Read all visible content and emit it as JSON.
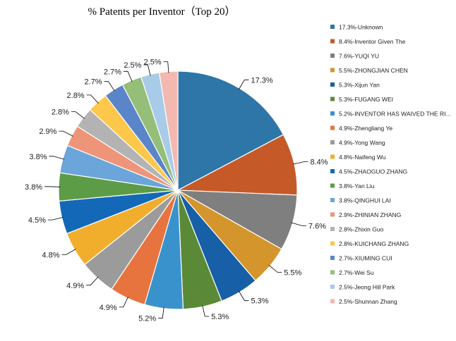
{
  "chart_data": {
    "type": "pie",
    "title": "% Patents per Inventor（Top 20）",
    "legend_position": "right",
    "slices": [
      {
        "name": "Unknown",
        "value": 17.3,
        "label": "17.3%",
        "legend": "17.3%-Unknown",
        "color": "#2E75A8"
      },
      {
        "name": "Inventor Given The",
        "value": 8.4,
        "label": "8.4%",
        "legend": "8.4%-Inventor Given The",
        "color": "#C55A28"
      },
      {
        "name": "YUQI YU",
        "value": 7.6,
        "label": "7.6%",
        "legend": "7.6%-YUQI YU",
        "color": "#7F7F7F"
      },
      {
        "name": "ZHONGJIAN CHEN",
        "value": 5.5,
        "label": "5.5%",
        "legend": "5.5%-ZHONGJIAN CHEN",
        "color": "#D4952C"
      },
      {
        "name": "Xijun Yan",
        "value": 5.3,
        "label": "5.3%",
        "legend": "5.3%-Xijun Yan",
        "color": "#175FA6"
      },
      {
        "name": "FUGANG WEI",
        "value": 5.3,
        "label": "5.3%",
        "legend": "5.3%-FUGANG WEI",
        "color": "#5A8A38"
      },
      {
        "name": "INVENTOR HAS WAIVED THE RI...",
        "value": 5.2,
        "label": "5.2%",
        "legend": "5.2%-INVENTOR HAS WAIVED THE RI...",
        "color": "#3A92CC"
      },
      {
        "name": "Zhengliang Ye",
        "value": 4.9,
        "label": "4.9%",
        "legend": "4.9%-Zhengliang Ye",
        "color": "#E7743E"
      },
      {
        "name": "Yong Wang",
        "value": 4.9,
        "label": "4.9%",
        "legend": "4.9%-Yong Wang",
        "color": "#9B9B9B"
      },
      {
        "name": "Naifeng Wu",
        "value": 4.8,
        "label": "4.8%",
        "legend": "4.8%-Naifeng Wu",
        "color": "#F1AE2D"
      },
      {
        "name": "ZHAOGUO ZHANG",
        "value": 4.5,
        "label": "4.5%",
        "legend": "4.5%-ZHAOGUO ZHANG",
        "color": "#1468B8"
      },
      {
        "name": "Yan Liu",
        "value": 3.8,
        "label": "3.8%",
        "legend": "3.8%-Yan Liu",
        "color": "#5C9C47"
      },
      {
        "name": "QINGHUI LAI",
        "value": 3.8,
        "label": "3.8%",
        "legend": "3.8%-QINGHUI LAI",
        "color": "#6BA5D9"
      },
      {
        "name": "ZHINIAN ZHANG",
        "value": 2.9,
        "label": "2.9%",
        "legend": "2.9%-ZHINIAN ZHANG",
        "color": "#EE9579"
      },
      {
        "name": "Zhixin Guo",
        "value": 2.8,
        "label": "2.8%",
        "legend": "2.8%-Zhixin Guo",
        "color": "#B3B3B3"
      },
      {
        "name": "KUICHANG ZHANG",
        "value": 2.8,
        "label": "2.8%",
        "legend": "2.8%-KUICHANG ZHANG",
        "color": "#FCC74B"
      },
      {
        "name": "XIUMING CUI",
        "value": 2.7,
        "label": "2.7%",
        "legend": "2.7%-XIUMING CUI",
        "color": "#5A85C8"
      },
      {
        "name": "Wei Su",
        "value": 2.7,
        "label": "2.7%",
        "legend": "2.7%-Wei Su",
        "color": "#95BE79"
      },
      {
        "name": "Jeong Hill Park",
        "value": 2.5,
        "label": "2.5%",
        "legend": "2.5%-Jeong Hill Park",
        "color": "#A8CBE8"
      },
      {
        "name": "Shunnan Zhang",
        "value": 2.5,
        "label": "2.5%",
        "legend": "2.5%-Shunnan Zhang",
        "color": "#F3B9B0"
      }
    ]
  }
}
